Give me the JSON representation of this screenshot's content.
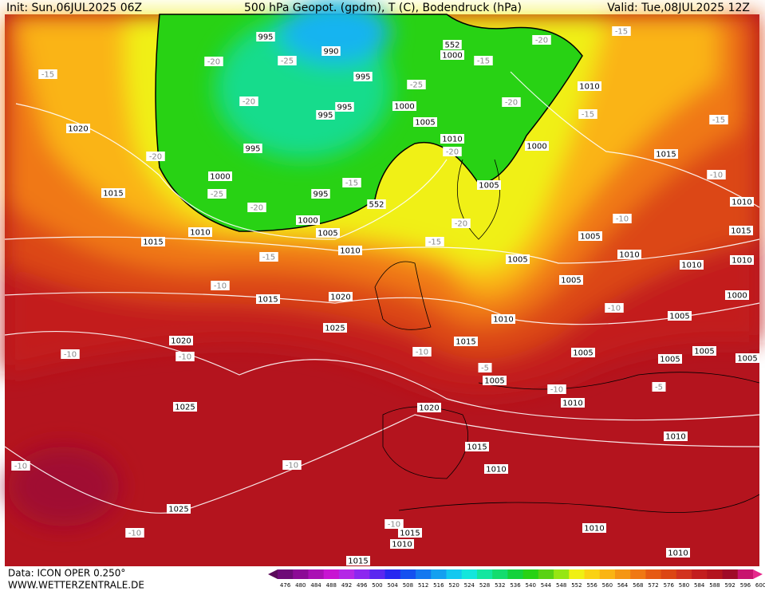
{
  "header": {
    "init": "Init: Sun,06JUL2025 06Z",
    "title": "500 hPa Geopot. (gpdm), T (C), Bodendruck (hPa)",
    "valid": "Valid: Tue,08JUL2025 12Z"
  },
  "footer": {
    "source": "Data: ICON OPER 0.250°",
    "site": "WWW.WETTERZENTRALE.DE"
  },
  "isobar_labels": [
    995,
    990,
    1000,
    995,
    1010,
    1000,
    995,
    995,
    1005,
    1020,
    1010,
    995,
    1000,
    1015,
    1000,
    1005,
    1015,
    995,
    1010,
    1000,
    1010,
    1005,
    1015,
    1015,
    1005,
    1010,
    1010,
    1005,
    1010,
    1010,
    1005,
    1015,
    1020,
    1000,
    1005,
    1010,
    1025,
    1015,
    1020,
    1005,
    1005,
    1005,
    1005,
    1005,
    1025,
    1010,
    1020,
    1010,
    1015,
    1010,
    1025,
    1015,
    1010,
    1010,
    1010,
    1015
  ],
  "temperature_labels": [
    -15,
    -20,
    -25,
    -15,
    -20,
    -15,
    -25,
    -20,
    -20,
    -15,
    -15,
    -20,
    -20,
    -25,
    -20,
    -15,
    -10,
    -10,
    -20,
    -15,
    -15,
    -10,
    -10,
    -10,
    -10,
    -10,
    -10,
    -5,
    -10,
    -10,
    -10,
    -10,
    -5
  ],
  "height_labels": [
    552,
    552
  ],
  "colorbar": {
    "labels": [
      476,
      480,
      484,
      488,
      492,
      496,
      500,
      504,
      508,
      512,
      516,
      520,
      524,
      528,
      532,
      536,
      540,
      544,
      548,
      552,
      556,
      560,
      564,
      568,
      572,
      576,
      580,
      584,
      588,
      592,
      596,
      600
    ],
    "colors": [
      "#5a0a5a",
      "#6e0a78",
      "#8c0a96",
      "#aa10b4",
      "#c814d2",
      "#b428e6",
      "#8c28f0",
      "#5a28f0",
      "#2828f0",
      "#1450f0",
      "#1478f0",
      "#14a0f0",
      "#14c8f0",
      "#14e6dc",
      "#14e6a0",
      "#14dc6e",
      "#14d23c",
      "#28d214",
      "#5ad214",
      "#96e614",
      "#f0f014",
      "#fad214",
      "#fab414",
      "#f59614",
      "#f07814",
      "#e65a14",
      "#dc4614",
      "#d2321e",
      "#c31e1e",
      "#b4141e",
      "#a00a28",
      "#c8146e",
      "#e6288c"
    ]
  }
}
